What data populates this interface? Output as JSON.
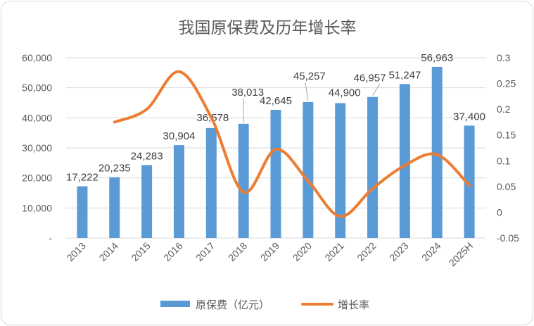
{
  "chart_data": {
    "type": "bar",
    "title": "我国原保费及历年增长率",
    "categories": [
      "2013",
      "2014",
      "2015",
      "2016",
      "2017",
      "2018",
      "2019",
      "2020",
      "2021",
      "2022",
      "2023",
      "2024",
      "2025H"
    ],
    "series": [
      {
        "name": "原保费（亿元）",
        "type": "bar",
        "axis": "left",
        "color": "#5b9bd5",
        "values": [
          17222,
          20235,
          24283,
          30904,
          36578,
          38013,
          42645,
          45257,
          44900,
          46957,
          51247,
          56963,
          37400
        ],
        "labels": [
          "17,222",
          "20,235",
          "24,283",
          "30,904",
          "36,578",
          "38,013",
          "42,645",
          "45,257",
          "44,900",
          "46,957",
          "51,247",
          "56,963",
          "37,400"
        ]
      },
      {
        "name": "增长率",
        "type": "line",
        "axis": "right",
        "color": "#ed7d31",
        "smooth": true,
        "values": [
          null,
          0.175,
          0.2,
          0.273,
          0.184,
          0.039,
          0.122,
          0.061,
          -0.008,
          0.046,
          0.091,
          0.112,
          0.052
        ]
      }
    ],
    "y_left": {
      "range": [
        0,
        60000
      ],
      "ticks": [
        0,
        10000,
        20000,
        30000,
        40000,
        50000,
        60000
      ],
      "tick_labels": [
        "-",
        "10,000",
        "20,000",
        "30,000",
        "40,000",
        "50,000",
        "60,000"
      ]
    },
    "y_right": {
      "range": [
        -0.05,
        0.3
      ],
      "ticks": [
        -0.05,
        0,
        0.05,
        0.1,
        0.15,
        0.2,
        0.25,
        0.3
      ],
      "tick_labels": [
        "-0.05",
        "0",
        "0.05",
        "0.1",
        "0.15",
        "0.2",
        "0.25",
        "0.3"
      ]
    },
    "grid": true,
    "legend_position": "bottom"
  }
}
